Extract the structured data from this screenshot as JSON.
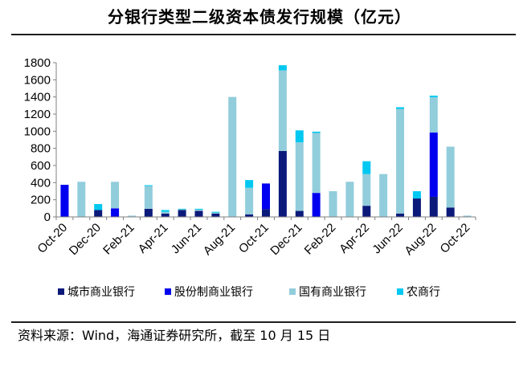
{
  "title": "分银行类型二级资本债发行规模（亿元）",
  "source": "资料来源：Wind，海通证券研究所，截至 10 月 15 日",
  "colors": {
    "city": "#0b1a7a",
    "joint": "#0000f0",
    "state": "#92cddc",
    "rural": "#00c8f0"
  },
  "chart_data": {
    "type": "bar",
    "stacked": true,
    "ylim": [
      0,
      1800
    ],
    "yticks": [
      "0",
      "200",
      "400",
      "600",
      "800",
      "1000",
      "1200",
      "1400",
      "1600",
      "1800"
    ],
    "categories": [
      "Oct-20",
      "Nov-20",
      "Dec-20",
      "Jan-21",
      "Feb-21",
      "Mar-21",
      "Apr-21",
      "May-21",
      "Jun-21",
      "Jul-21",
      "Aug-21",
      "Sep-21",
      "Oct-21",
      "Nov-21",
      "Dec-21",
      "Jan-22",
      "Feb-22",
      "Mar-22",
      "Apr-22",
      "May-22",
      "Jun-22",
      "Jul-22",
      "Aug-22",
      "Sep-22",
      "Oct-22"
    ],
    "xtick_labels": [
      "Oct-20",
      "",
      "Dec-20",
      "",
      "Feb-21",
      "",
      "Apr-21",
      "",
      "Jun-21",
      "",
      "Aug-21",
      "",
      "Oct-21",
      "",
      "Dec-21",
      "",
      "Feb-22",
      "",
      "Apr-22",
      "",
      "Jun-22",
      "",
      "Aug-22",
      "",
      "Oct-22"
    ],
    "series": [
      {
        "name": "城市商业银行",
        "key": "city",
        "values": [
          0,
          0,
          80,
          0,
          0,
          95,
          40,
          80,
          70,
          40,
          0,
          30,
          90,
          770,
          70,
          0,
          0,
          0,
          130,
          0,
          40,
          215,
          235,
          110,
          0
        ]
      },
      {
        "name": "股份制商业银行",
        "key": "joint",
        "values": [
          375,
          0,
          0,
          100,
          0,
          0,
          0,
          0,
          0,
          0,
          0,
          0,
          300,
          0,
          0,
          280,
          0,
          0,
          0,
          0,
          0,
          0,
          750,
          0,
          0
        ]
      },
      {
        "name": "国有商业银行",
        "key": "state",
        "values": [
          0,
          410,
          0,
          310,
          15,
          265,
          20,
          10,
          15,
          10,
          1400,
          310,
          0,
          940,
          800,
          700,
          300,
          410,
          370,
          500,
          1220,
          0,
          410,
          710,
          15
        ]
      },
      {
        "name": "农商行",
        "key": "rural",
        "values": [
          0,
          0,
          70,
          0,
          0,
          10,
          20,
          5,
          10,
          10,
          0,
          90,
          0,
          60,
          140,
          15,
          0,
          0,
          150,
          0,
          20,
          85,
          20,
          0,
          0
        ]
      }
    ]
  }
}
